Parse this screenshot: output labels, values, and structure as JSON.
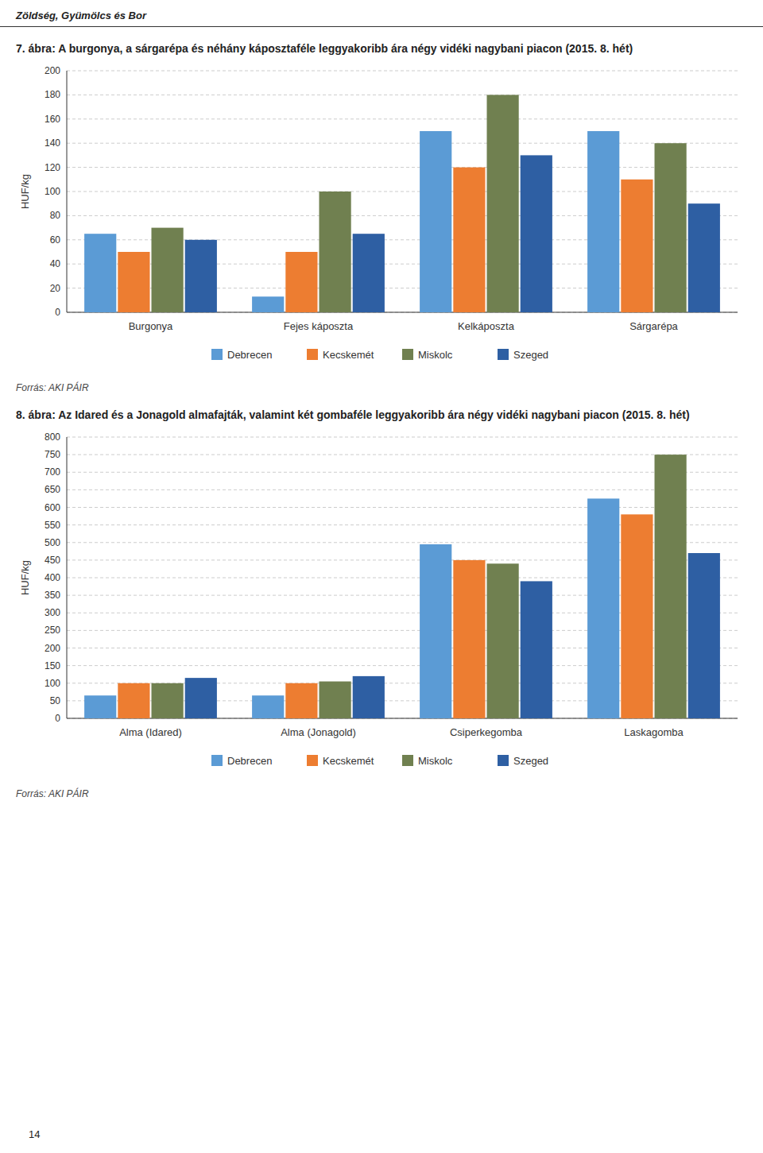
{
  "page_header": "Zöldség, Gyümölcs és Bor",
  "page_number": 14,
  "chart_data": [
    {
      "type": "bar",
      "title": "7. ábra: A burgonya, a sárgarépa és néhány káposztaféle leggyakoribb ára négy vidéki nagybani piacon (2015. 8. hét)",
      "categories": [
        "Burgonya",
        "Fejes káposzta",
        "Kelkáposzta",
        "Sárgarépa"
      ],
      "series": [
        {
          "name": "Debrecen",
          "color": "#5B9BD5",
          "values": [
            65,
            13,
            150,
            150
          ]
        },
        {
          "name": "Kecskemét",
          "color": "#ED7D31",
          "values": [
            50,
            50,
            120,
            110
          ]
        },
        {
          "name": "Miskolc",
          "color": "#708050",
          "values": [
            70,
            100,
            180,
            140
          ]
        },
        {
          "name": "Szeged",
          "color": "#2E5FA3",
          "values": [
            60,
            65,
            130,
            90
          ]
        }
      ],
      "y_label": "HUF/kg",
      "ylim": [
        0,
        200
      ],
      "yticks": [
        0,
        20,
        40,
        60,
        80,
        100,
        120,
        140,
        160,
        180,
        200
      ],
      "grid": true,
      "legend": "bottom",
      "annotations": [
        "Forrás: AKI PÁIR"
      ]
    },
    {
      "type": "bar",
      "title": "8. ábra: Az Idared és a Jonagold almafajták, valamint két gombaféle leggyakoribb ára négy vidéki nagybani piacon (2015. 8. hét)",
      "categories": [
        "Alma (Idared)",
        "Alma (Jonagold)",
        "Csiperkegomba",
        "Laskagomba"
      ],
      "series": [
        {
          "name": "Debrecen",
          "color": "#5B9BD5",
          "values": [
            65,
            65,
            495,
            625
          ]
        },
        {
          "name": "Kecskemét",
          "color": "#ED7D31",
          "values": [
            100,
            100,
            450,
            580
          ]
        },
        {
          "name": "Miskolc",
          "color": "#708050",
          "values": [
            100,
            105,
            440,
            750
          ]
        },
        {
          "name": "Szeged",
          "color": "#2E5FA3",
          "values": [
            115,
            120,
            390,
            470
          ]
        }
      ],
      "y_label": "HUF/kg",
      "ylim": [
        0,
        800
      ],
      "yticks": [
        0,
        50,
        100,
        150,
        200,
        250,
        300,
        350,
        400,
        450,
        500,
        550,
        600,
        650,
        700,
        750,
        800
      ],
      "grid": true,
      "legend": "bottom",
      "annotations": [
        "Forrás: AKI PÁIR"
      ]
    }
  ]
}
